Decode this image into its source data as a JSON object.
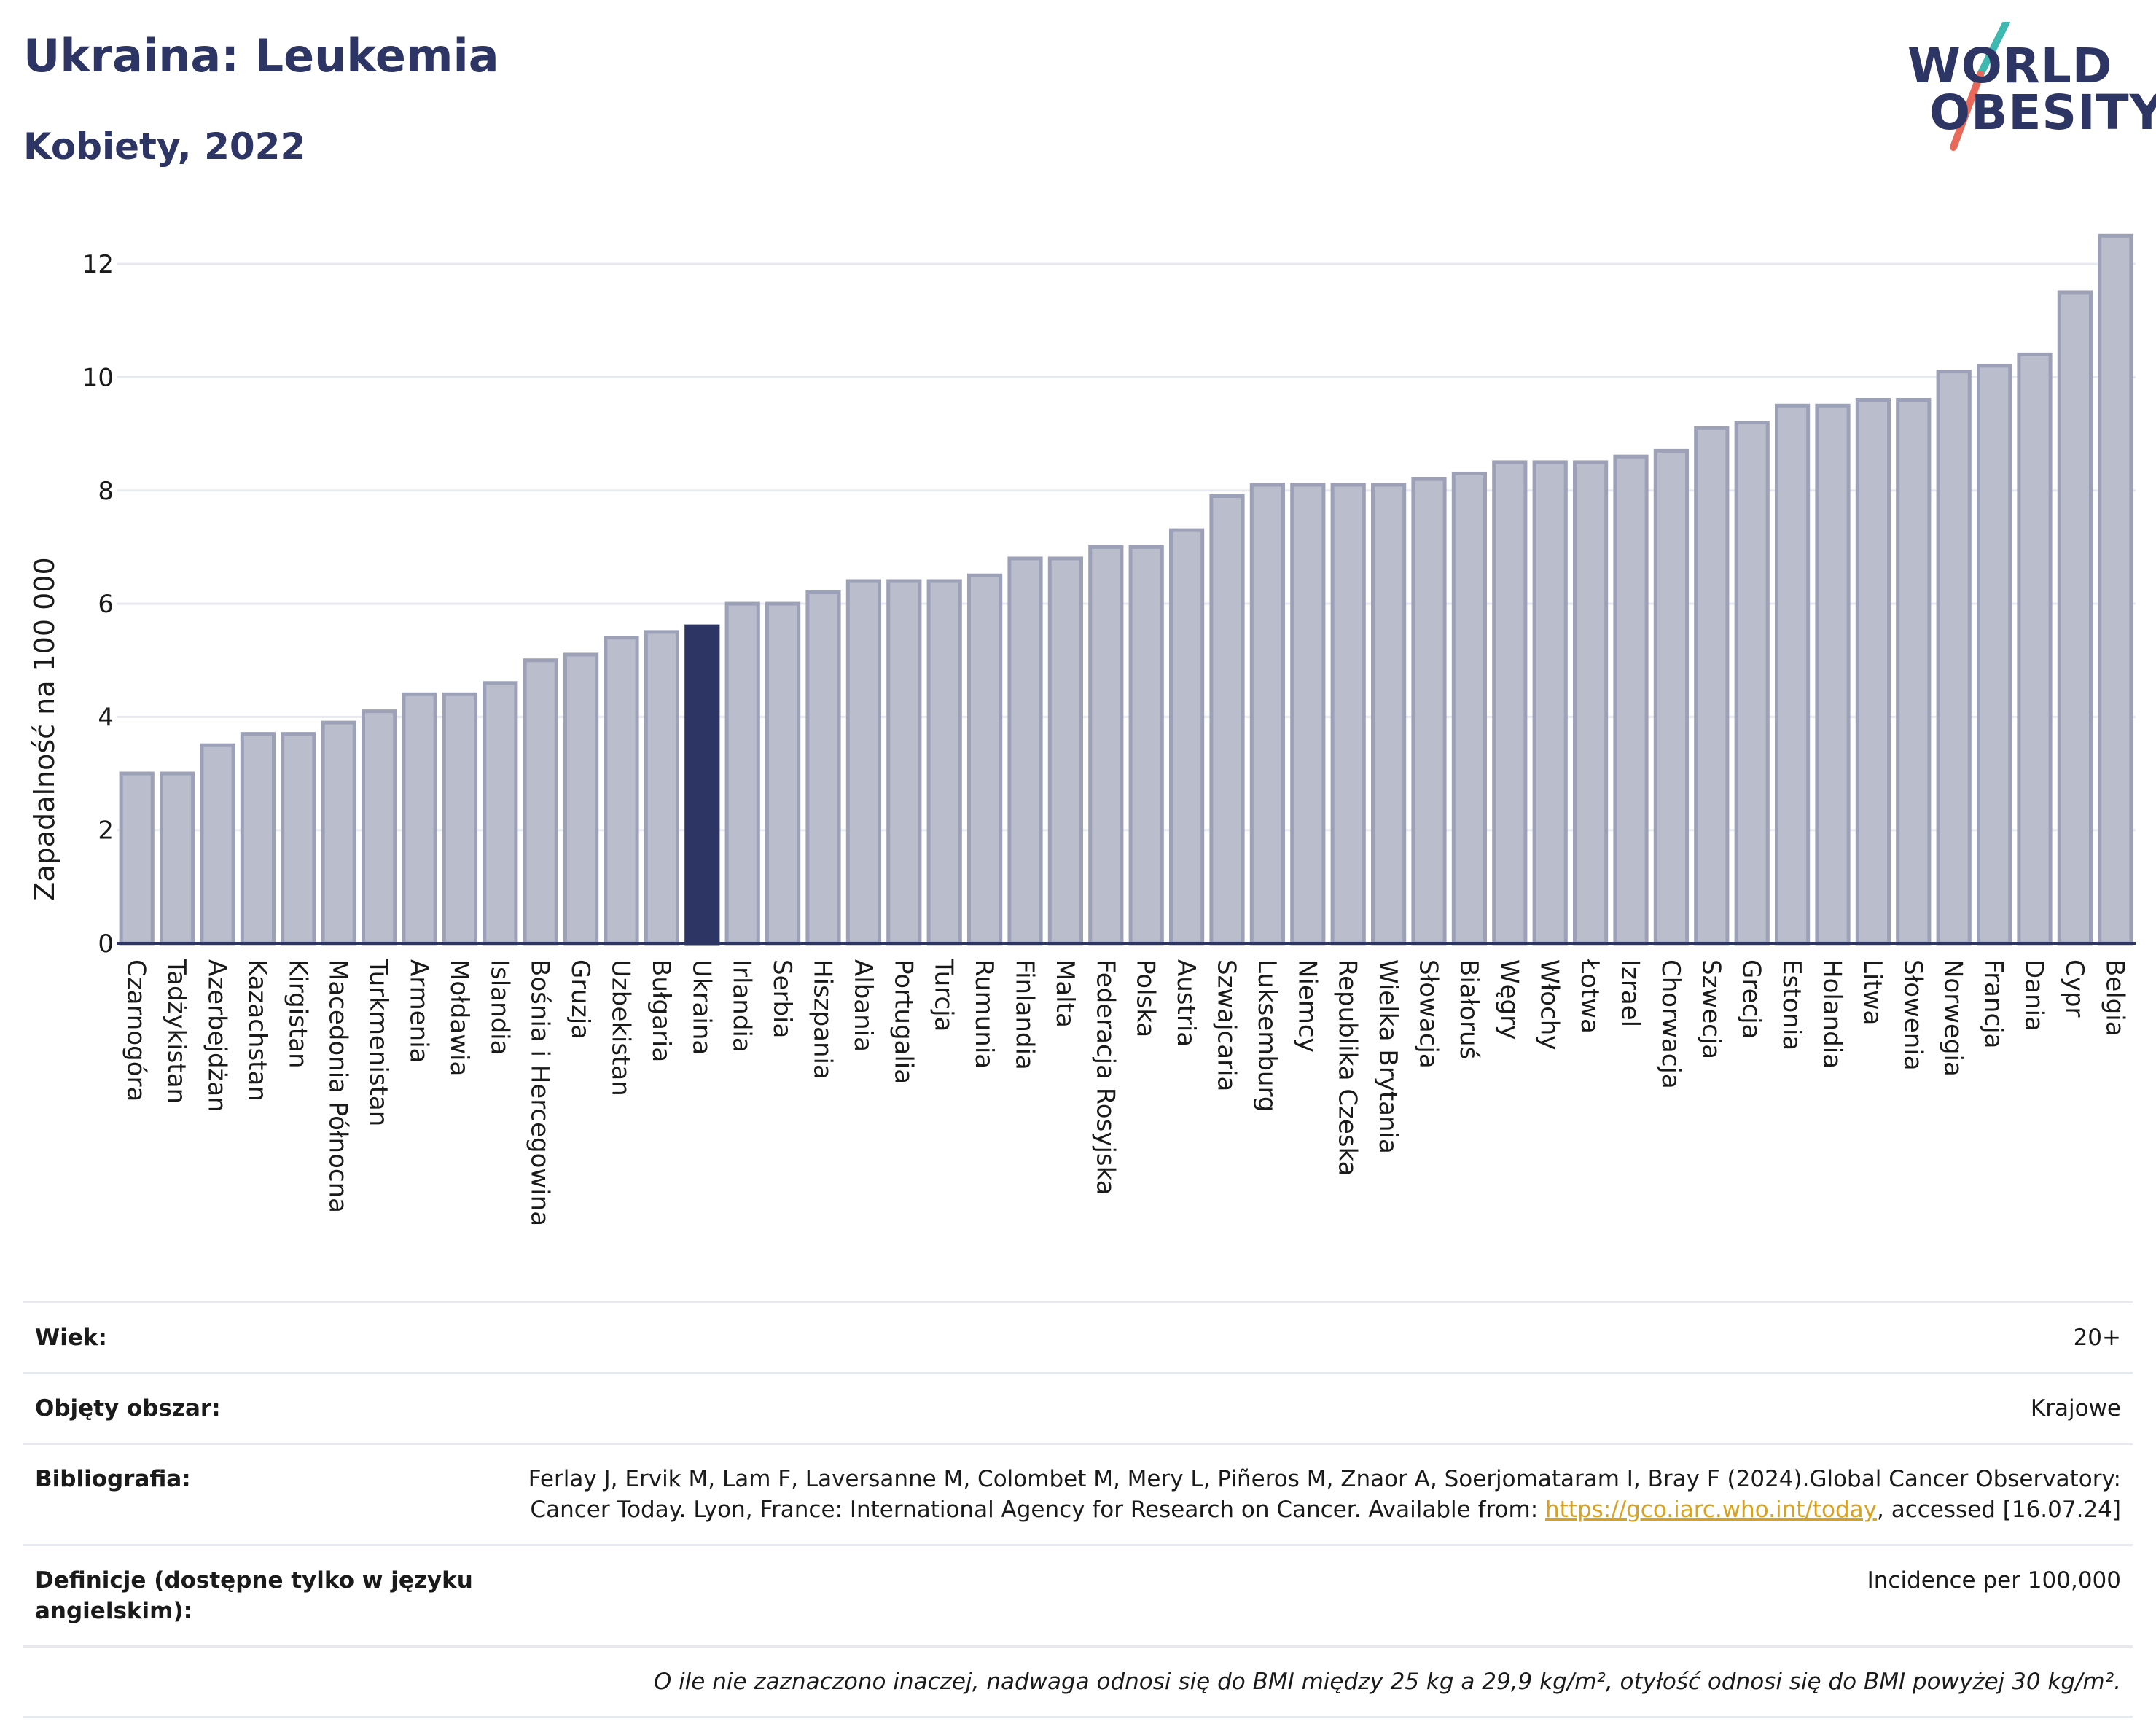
{
  "header": {
    "title": "Ukraina: Leukemia",
    "subtitle": "Kobiety, 2022"
  },
  "logo": {
    "line1": "WORLD",
    "line2": "OBESITY",
    "colors": {
      "text": "#2d3565",
      "slash_teal": "#3fb8b0",
      "slash_coral": "#e8695a"
    }
  },
  "colors": {
    "bar_default": "#b9bdcc",
    "bar_border": "#9ca1b8",
    "bar_highlight": "#2d3565",
    "grid": "#e8e9f0",
    "axis": "#2d3565"
  },
  "chart_data": {
    "type": "bar",
    "title": "Ukraina: Leukemia",
    "subtitle": "Kobiety, 2022",
    "xlabel": "",
    "ylabel": "Zapadalność na 100 000",
    "ylim": [
      0,
      12.8
    ],
    "yticks": [
      0,
      2,
      4,
      6,
      8,
      10,
      12
    ],
    "grid": true,
    "highlight": "Ukraina",
    "categories": [
      "Czarnogóra",
      "Tadżykistan",
      "Azerbejdżan",
      "Kazachstan",
      "Kirgistan",
      "Macedonia Północna",
      "Turkmenistan",
      "Armenia",
      "Mołdawia",
      "Islandia",
      "Bośnia i Hercegowina",
      "Gruzja",
      "Uzbekistan",
      "Bułgaria",
      "Ukraina",
      "Irlandia",
      "Serbia",
      "Hiszpania",
      "Albania",
      "Portugalia",
      "Turcja",
      "Rumunia",
      "Finlandia",
      "Malta",
      "Federacja Rosyjska",
      "Polska",
      "Austria",
      "Szwajcaria",
      "Luksemburg",
      "Niemcy",
      "Republika Czeska",
      "Wielka Brytania",
      "Słowacja",
      "Białoruś",
      "Węgry",
      "Włochy",
      "Łotwa",
      "Izrael",
      "Chorwacja",
      "Szwecja",
      "Grecja",
      "Estonia",
      "Holandia",
      "Litwa",
      "Słowenia",
      "Norwegia",
      "Francja",
      "Dania",
      "Cypr",
      "Belgia"
    ],
    "values": [
      3.0,
      3.0,
      3.5,
      3.7,
      3.7,
      3.9,
      4.1,
      4.4,
      4.4,
      4.6,
      5.0,
      5.1,
      5.4,
      5.5,
      5.6,
      6.0,
      6.0,
      6.2,
      6.4,
      6.4,
      6.4,
      6.5,
      6.8,
      6.8,
      7.0,
      7.0,
      7.3,
      7.9,
      8.1,
      8.1,
      8.1,
      8.1,
      8.2,
      8.3,
      8.5,
      8.5,
      8.5,
      8.6,
      8.7,
      9.1,
      9.2,
      9.5,
      9.5,
      9.6,
      9.6,
      10.1,
      10.2,
      10.4,
      11.5,
      12.5
    ]
  },
  "meta": {
    "age_label": "Wiek:",
    "age_value": "20+",
    "area_label": "Objęty obszar:",
    "area_value": "Krajowe",
    "biblio_label": "Bibliografia:",
    "biblio_text_1": "Ferlay J, Ervik M, Lam F, Laversanne M, Colombet M, Mery L, Piñeros M, Znaor A, Soerjomataram I, Bray F (2024).Global Cancer Observatory: Cancer Today. Lyon, France: International Agency for Research on Cancer. Available from: ",
    "biblio_link": "https://gco.iarc.who.int/today",
    "biblio_text_2": ", accessed [16.07.24]",
    "definitions_label": "Definicje (dostępne tylko w języku angielskim):",
    "definitions_value": "Incidence per 100,000",
    "note": "O ile nie zaznaczono inaczej, nadwaga odnosi się do BMI między 25 kg a 29,9 kg/m², otyłość odnosi się do BMI powyżej 30 kg/m²."
  }
}
